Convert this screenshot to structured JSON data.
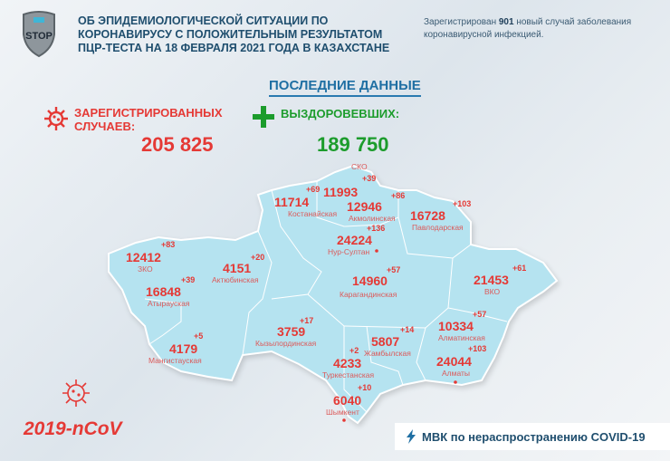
{
  "header": {
    "logo_text": "STOP",
    "title_lines": [
      "ОБ ЭПИДЕМИОЛОГИЧЕСКОЙ СИТУАЦИИ ПО",
      "КОРОНАВИРУСУ С ПОЛОЖИТЕЛЬНЫМ РЕЗУЛЬТАТОМ",
      "ПЦР-ТЕСТА НА 18 ФЕВРАЛЯ 2021 ГОДА В КАЗАХСТАНЕ"
    ],
    "note_prefix": "Зарегистрирован ",
    "note_count": "901",
    "note_suffix": " новый случай заболевания коронавирусной инфекцией."
  },
  "latest_label": "ПОСЛЕДНИЕ ДАННЫЕ",
  "registered": {
    "label_1": "ЗАРЕГИСТРИРОВАННЫХ",
    "label_2": "СЛУЧАЕВ:",
    "value": "205 825",
    "icon": "virus-icon"
  },
  "recovered": {
    "label": "ВЫЗДОРОВЕВШИХ:",
    "value": "189 750",
    "icon": "plus-icon"
  },
  "colors": {
    "cases": "#e53935",
    "recovered": "#1c9c2c",
    "map": "#b5e3f0",
    "title": "#1f4e6e"
  },
  "regions": [
    {
      "name": "СКО",
      "cases": "11993",
      "new": "+39"
    },
    {
      "name": "Костанайская",
      "cases": "11714",
      "new": "+69"
    },
    {
      "name": "Акмолинская",
      "cases": "12946",
      "new": "+86"
    },
    {
      "name": "Павлодарская",
      "cases": "16728",
      "new": "+103"
    },
    {
      "name": "Нур-Султан",
      "cases": "24224",
      "new": "+136"
    },
    {
      "name": "ЗКО",
      "cases": "12412",
      "new": "+83"
    },
    {
      "name": "Актюбинская",
      "cases": "4151",
      "new": "+20"
    },
    {
      "name": "Карагандинская",
      "cases": "14960",
      "new": "+57"
    },
    {
      "name": "ВКО",
      "cases": "21453",
      "new": "+61"
    },
    {
      "name": "Атырауская",
      "cases": "16848",
      "new": "+39"
    },
    {
      "name": "Кызылординская",
      "cases": "3759",
      "new": "+17"
    },
    {
      "name": "Алматинская",
      "cases": "10334",
      "new": "+57"
    },
    {
      "name": "Жамбылская",
      "cases": "5807",
      "new": "+14"
    },
    {
      "name": "Туркестанская",
      "cases": "4233",
      "new": "+2"
    },
    {
      "name": "Мангистауская",
      "cases": "4179",
      "new": "+5"
    },
    {
      "name": "Алматы",
      "cases": "24044",
      "new": "+103"
    },
    {
      "name": "Шымкент",
      "cases": "6040",
      "new": "+10"
    }
  ],
  "footer": {
    "ncov": "2019-nCoV",
    "banner": "МВК по нераспространению COVID-19"
  }
}
